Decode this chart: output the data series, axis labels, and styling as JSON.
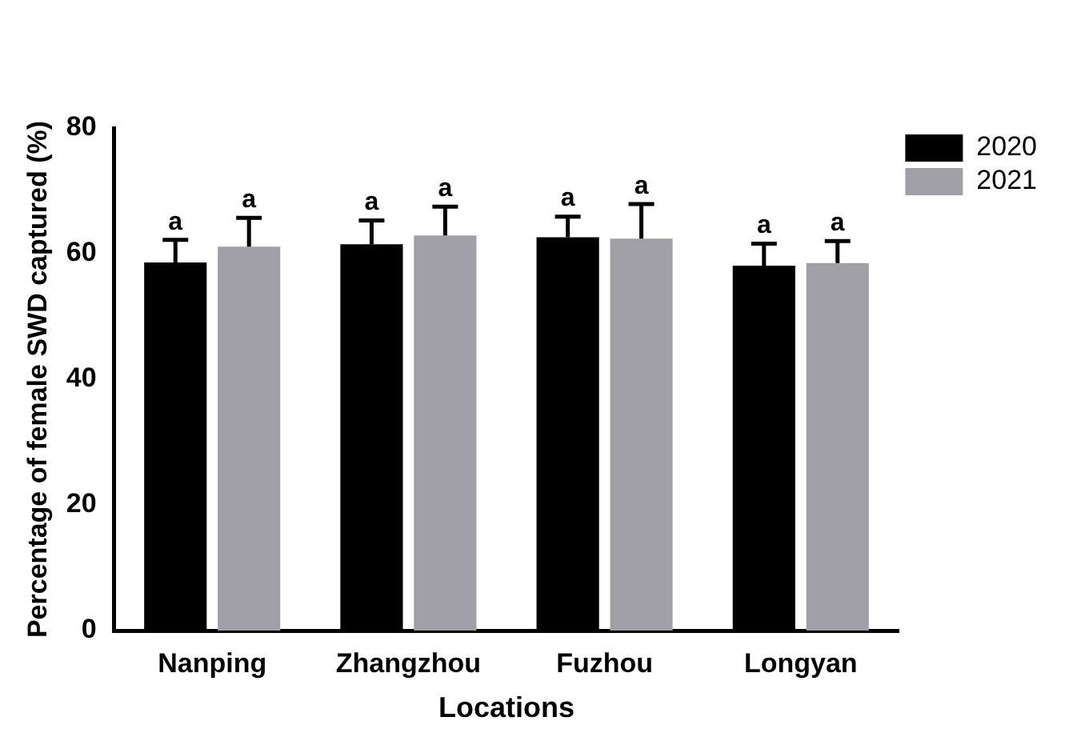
{
  "chart_data": {
    "type": "bar",
    "xlabel": "Locations",
    "ylabel": "Percentage of female SWD captured (%)",
    "categories": [
      "Nanping",
      "Zhangzhou",
      "Fuzhou",
      "Longyan"
    ],
    "series": [
      {
        "name": "2020",
        "color": "#000000",
        "values": [
          58.6,
          61.5,
          62.6,
          58.1
        ],
        "errors": [
          [
            58.6,
            62.2
          ],
          [
            61.5,
            65.3
          ],
          [
            62.6,
            65.9
          ],
          [
            58.1,
            61.6
          ]
        ],
        "value_labels": [
          "a",
          "a",
          "a",
          "a"
        ]
      },
      {
        "name": "2021",
        "color": "#a0a0a4",
        "values": [
          61.1,
          62.9,
          62.4,
          58.5
        ],
        "errors": [
          [
            61.1,
            65.7
          ],
          [
            62.9,
            67.5
          ],
          [
            62.4,
            67.9
          ],
          [
            58.5,
            62.0
          ]
        ],
        "value_labels": [
          "a",
          "a",
          "a",
          "a"
        ]
      }
    ],
    "ylim": [
      0,
      80
    ],
    "yticks": [
      0,
      20,
      40,
      60,
      80
    ],
    "grid": false,
    "legend": "top right"
  }
}
